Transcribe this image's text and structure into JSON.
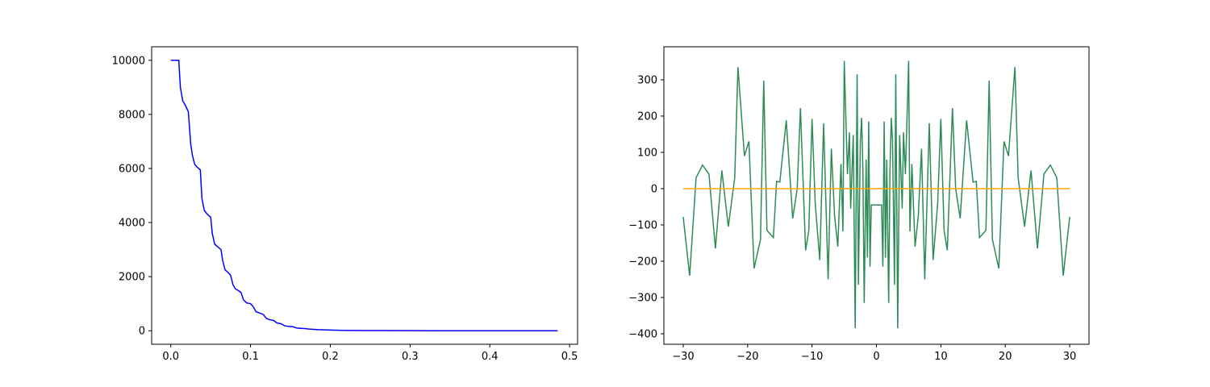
{
  "chart_data": [
    {
      "type": "line",
      "xlim": [
        -0.024,
        0.51
      ],
      "ylim": [
        -500,
        10500
      ],
      "xticks": [
        {
          "value": 0,
          "label": "0.0"
        },
        0.1,
        0.2,
        0.3,
        0.4,
        0.5
      ],
      "yticks": [
        0,
        2000,
        4000,
        6000,
        8000,
        10000
      ],
      "series": [
        {
          "color": "#0000ff",
          "x": [
            0,
            0.005,
            0.01,
            0.012,
            0.015,
            0.018,
            0.022,
            0.025,
            0.027,
            0.03,
            0.033,
            0.037,
            0.039,
            0.042,
            0.046,
            0.05,
            0.052,
            0.055,
            0.059,
            0.063,
            0.065,
            0.068,
            0.072,
            0.075,
            0.078,
            0.081,
            0.085,
            0.088,
            0.091,
            0.095,
            0.1,
            0.103,
            0.107,
            0.112,
            0.116,
            0.12,
            0.125,
            0.129,
            0.133,
            0.138,
            0.143,
            0.148,
            0.153,
            0.158,
            0.163,
            0.168,
            0.175,
            0.185,
            0.2,
            0.22,
            0.25,
            0.3,
            0.35,
            0.4,
            0.485
          ],
          "values": [
            10000,
            10000,
            10000,
            9000,
            8500,
            8350,
            8100,
            6900,
            6500,
            6150,
            6050,
            5950,
            4900,
            4450,
            4300,
            4200,
            3600,
            3200,
            3100,
            3000,
            2600,
            2250,
            2150,
            2050,
            1700,
            1550,
            1480,
            1420,
            1150,
            1030,
            1000,
            900,
            700,
            650,
            600,
            450,
            400,
            380,
            290,
            260,
            180,
            160,
            150,
            100,
            90,
            80,
            60,
            40,
            25,
            12,
            5,
            2,
            1,
            0,
            0
          ]
        }
      ]
    },
    {
      "type": "line",
      "xlim": [
        -33,
        33
      ],
      "ylim": [
        -429,
        391
      ],
      "xticks": [
        {
          "value": -30,
          "label": "−30"
        },
        {
          "value": -20,
          "label": "−20"
        },
        {
          "value": -10,
          "label": "−10"
        },
        0,
        10,
        20,
        30
      ],
      "yticks": [
        {
          "value": -400,
          "label": "−400"
        },
        {
          "value": -300,
          "label": "−300"
        },
        {
          "value": -200,
          "label": "−200"
        },
        {
          "value": -100,
          "label": "−100"
        },
        0,
        100,
        200,
        300
      ],
      "series": [
        {
          "color": "#2e8b57",
          "x": [
            -30,
            -29,
            -28,
            -27,
            -26,
            -25,
            -24,
            -23,
            -22,
            -21.5,
            -20.5,
            -19.8,
            -19,
            -18,
            -17.5,
            -17,
            -16,
            -15.5,
            -15,
            -14,
            -13,
            -12.3,
            -11.8,
            -11,
            -10.5,
            -10,
            -9.5,
            -8.8,
            -8.2,
            -7.5,
            -7,
            -6.5,
            -6,
            -5.5,
            -5.2,
            -5,
            -4.5,
            -4.2,
            -4,
            -3.6,
            -3.3,
            -3,
            -2.8,
            -2.5,
            -2.3,
            -2.1,
            -1.9,
            -1.6,
            -1.4,
            -1.2,
            -1,
            -0.8,
            0.8,
            1,
            1.2,
            1.4,
            1.6,
            1.9,
            2.1,
            2.3,
            2.5,
            2.8,
            3,
            3.3,
            3.6,
            4,
            4.2,
            4.5,
            5,
            5.2,
            5.5,
            6,
            6.5,
            7,
            7.5,
            8.2,
            8.8,
            9.5,
            10,
            10.5,
            11,
            11.8,
            12.3,
            13,
            14,
            15,
            15.5,
            16,
            17,
            17.5,
            18,
            19,
            19.8,
            20.5,
            21.5,
            22,
            23,
            24,
            25,
            26,
            27,
            28,
            29,
            30
          ],
          "values": [
            -78,
            -240,
            30,
            65,
            40,
            -165,
            50,
            -105,
            30,
            335,
            90,
            130,
            -220,
            -140,
            298,
            -115,
            -135,
            20,
            18,
            188,
            -82,
            0,
            222,
            -170,
            -115,
            192,
            -42,
            -197,
            180,
            -250,
            110,
            -75,
            -160,
            68,
            -118,
            352,
            40,
            155,
            -55,
            148,
            -385,
            315,
            -265,
            130,
            195,
            50,
            -315,
            80,
            -190,
            185,
            -215,
            -45,
            -45,
            -215,
            185,
            -190,
            80,
            -315,
            50,
            195,
            130,
            -265,
            315,
            -385,
            148,
            -55,
            155,
            40,
            352,
            -118,
            68,
            -160,
            -75,
            110,
            -250,
            180,
            -197,
            -42,
            192,
            -115,
            -170,
            222,
            0,
            -82,
            188,
            18,
            20,
            -135,
            -115,
            298,
            -140,
            -220,
            130,
            90,
            335,
            30,
            -105,
            50,
            -165,
            40,
            65,
            30,
            -240,
            -78
          ]
        },
        {
          "color": "#ffa500",
          "x": [
            -30,
            30
          ],
          "values": [
            0,
            0
          ]
        }
      ]
    }
  ]
}
